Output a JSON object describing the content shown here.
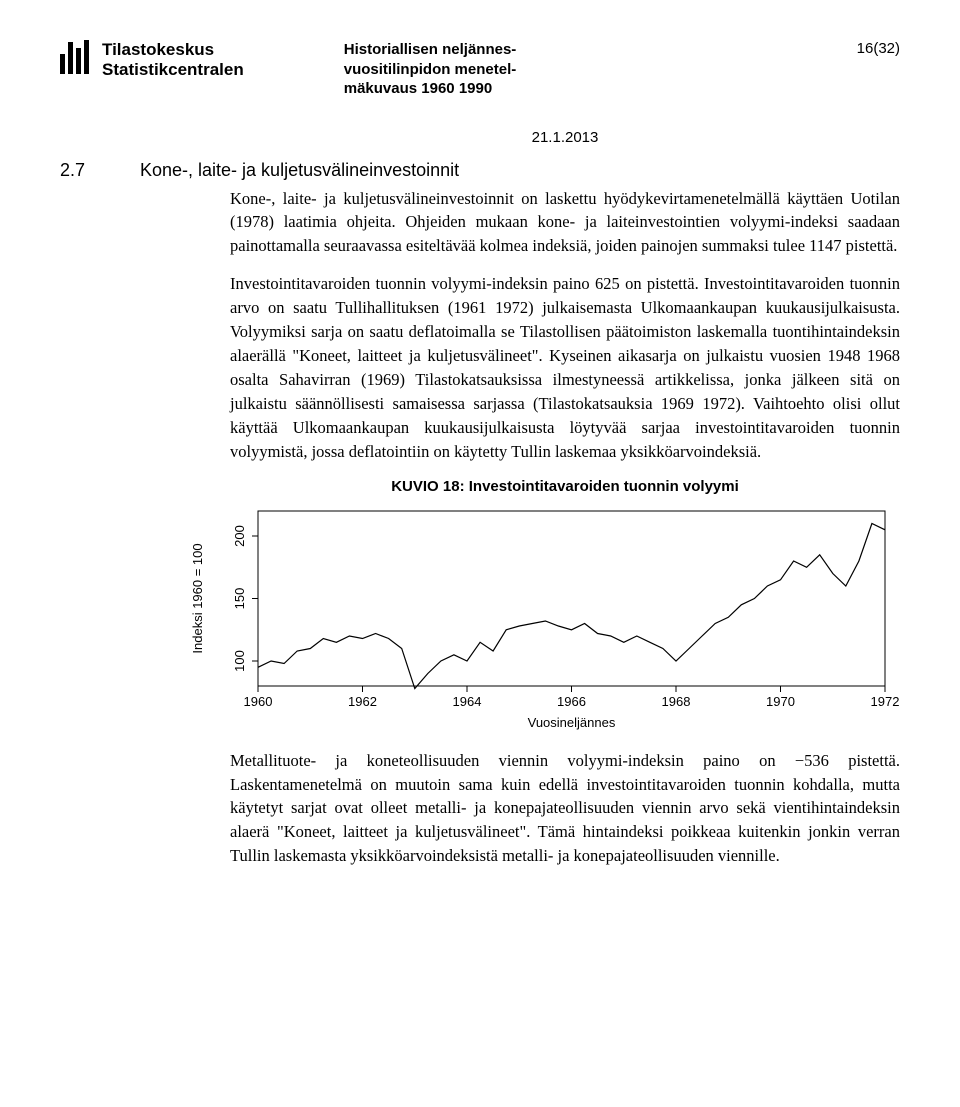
{
  "header": {
    "logo_line1": "Tilastokeskus",
    "logo_line2": "Statistikcentralen",
    "doc_title_l1": "Historiallisen neljännes-",
    "doc_title_l2": "vuositilinpidon menetel-",
    "doc_title_l3": "mäkuvaus 1960 1990",
    "page_num": "16(32)",
    "date": "21.1.2013"
  },
  "section": {
    "num": "2.7",
    "title": "Kone-, laite- ja kuljetusvälineinvestoinnit"
  },
  "paragraphs": {
    "p1": "Kone-, laite- ja kuljetusvälineinvestoinnit on laskettu hyödykevirtamenetelmällä käyttäen Uotilan (1978) laatimia ohjeita. Ohjeiden mukaan kone- ja laiteinvestointien volyymi-indeksi saadaan painottamalla seuraavassa esiteltävää kolmea indeksiä, joiden painojen summaksi tulee 1147 pistettä.",
    "p2": "Investointitavaroiden tuonnin volyymi-indeksin paino 625 on pistettä. Investointitavaroiden tuonnin arvo on saatu Tullihallituksen (1961 1972) julkaisemasta Ulkomaankaupan kuukausijulkaisusta. Volyymiksi sarja on saatu deflatoimalla se Tilastollisen päätoimiston laskemalla tuontihintaindeksin alaerällä \"Koneet, laitteet ja kuljetusvälineet\". Kyseinen aikasarja on julkaistu vuosien 1948 1968 osalta Sahavirran (1969) Tilastokatsauksissa ilmestyneessä artikkelissa, jonka jälkeen sitä on julkaistu säännöllisesti samaisessa sarjassa (Tilastokatsauksia 1969 1972). Vaihtoehto olisi ollut käyttää Ulkomaankaupan kuukausijulkaisusta löytyvää sarjaa investointitavaroiden tuonnin volyymistä, jossa deflatointiin on käytetty Tullin laskemaa yksikköarvoindeksiä.",
    "p3": "Metallituote- ja koneteollisuuden viennin volyymi-indeksin paino on −536 pistettä. Laskentamenetelmä on muutoin sama kuin edellä investointitavaroiden tuonnin kohdalla, mutta käytetyt sarjat ovat olleet metalli- ja konepajateollisuuden viennin arvo sekä vientihintaindeksin alaerä \"Koneet, laitteet ja kuljetusvälineet\". Tämä hintaindeksi poikkeaa kuitenkin jonkin verran Tullin laskemasta yksikköarvoindeksistä metalli- ja konepajateollisuuden viennille."
  },
  "chart": {
    "title": "KUVIO 18: Investointitavaroiden tuonnin volyymi",
    "type": "line",
    "ylabel": "Indeksi 1960 = 100",
    "xlabel": "Vuosineljännes",
    "xlim": [
      1960,
      1972
    ],
    "ylim": [
      80,
      220
    ],
    "yticks": [
      100,
      150,
      200
    ],
    "xticks": [
      1960,
      1962,
      1964,
      1966,
      1968,
      1970,
      1972
    ],
    "line_color": "#000000",
    "line_width": 1.2,
    "background_color": "#ffffff",
    "axis_color": "#000000",
    "label_fontsize": 13,
    "tick_fontsize": 13,
    "series_x": [
      1960.0,
      1960.25,
      1960.5,
      1960.75,
      1961.0,
      1961.25,
      1961.5,
      1961.75,
      1962.0,
      1962.25,
      1962.5,
      1962.75,
      1963.0,
      1963.25,
      1963.5,
      1963.75,
      1964.0,
      1964.25,
      1964.5,
      1964.75,
      1965.0,
      1965.25,
      1965.5,
      1965.75,
      1966.0,
      1966.25,
      1966.5,
      1966.75,
      1967.0,
      1967.25,
      1967.5,
      1967.75,
      1968.0,
      1968.25,
      1968.5,
      1968.75,
      1969.0,
      1969.25,
      1969.5,
      1969.75,
      1970.0,
      1970.25,
      1970.5,
      1970.75,
      1971.0,
      1971.25,
      1971.5,
      1971.75,
      1972.0
    ],
    "series_y": [
      95,
      100,
      98,
      108,
      110,
      118,
      115,
      120,
      118,
      122,
      118,
      110,
      78,
      90,
      100,
      105,
      100,
      115,
      108,
      125,
      128,
      130,
      132,
      128,
      125,
      130,
      122,
      120,
      115,
      120,
      115,
      110,
      100,
      110,
      120,
      130,
      135,
      145,
      150,
      160,
      165,
      180,
      175,
      185,
      170,
      160,
      180,
      210,
      205
    ]
  }
}
